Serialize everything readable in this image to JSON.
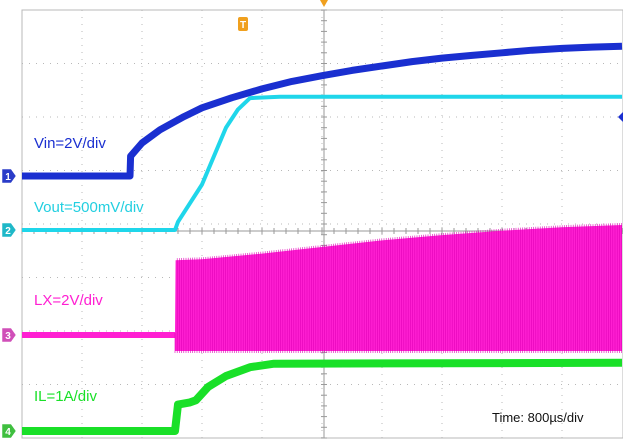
{
  "chart_data": {
    "type": "line",
    "title": "",
    "xlabel": "",
    "ylabel": "",
    "grid": true,
    "time_label": "Time: 800µs/div",
    "trigger_marker": "T",
    "colors": {
      "Vin": "#1a2fd0",
      "Vout": "#1fd6ea",
      "LX": "#ff1fd2",
      "IL": "#19e028",
      "grid": "#b8b8b8",
      "trigger": "#f0a01e"
    },
    "series": [
      {
        "name": "Vin",
        "label": "Vin=2V/div",
        "marker": "1",
        "kind": "line",
        "color": "#1a2fd0",
        "points": [
          [
            0,
            0
          ],
          [
            1.8,
            0
          ],
          [
            1.81,
            0.45
          ],
          [
            2.0,
            0.75
          ],
          [
            2.3,
            1.05
          ],
          [
            2.7,
            1.35
          ],
          [
            3.0,
            1.55
          ],
          [
            3.5,
            1.78
          ],
          [
            4.0,
            1.98
          ],
          [
            4.5,
            2.15
          ],
          [
            5.0,
            2.28
          ],
          [
            5.5,
            2.4
          ],
          [
            6.0,
            2.5
          ],
          [
            6.5,
            2.6
          ],
          [
            7.0,
            2.68
          ],
          [
            7.5,
            2.74
          ],
          [
            8.0,
            2.8
          ],
          [
            8.5,
            2.86
          ],
          [
            9.0,
            2.9
          ],
          [
            9.5,
            2.93
          ],
          [
            10,
            2.95
          ]
        ]
      },
      {
        "name": "Vout",
        "label": "Vout=500mV/div",
        "marker": "2",
        "kind": "line",
        "color": "#1fd6ea",
        "points": [
          [
            0,
            0
          ],
          [
            2.55,
            0
          ],
          [
            2.6,
            0.18
          ],
          [
            3.0,
            1.0
          ],
          [
            3.4,
            2.25
          ],
          [
            3.6,
            2.65
          ],
          [
            3.8,
            2.9
          ],
          [
            4.3,
            2.93
          ],
          [
            10,
            2.93
          ]
        ]
      },
      {
        "name": "LX",
        "label": "LX=2V/div",
        "marker": "3",
        "kind": "switching",
        "color": "#ff1fd2",
        "points": [
          [
            0,
            0
          ],
          [
            2.55,
            0
          ],
          [
            2.56,
            1.7
          ],
          [
            3.0,
            1.72
          ],
          [
            4.0,
            1.85
          ],
          [
            5.0,
            2.0
          ],
          [
            6.0,
            2.15
          ],
          [
            7.0,
            2.27
          ],
          [
            8.0,
            2.37
          ],
          [
            9.0,
            2.45
          ],
          [
            10,
            2.5
          ]
        ]
      },
      {
        "name": "IL",
        "label": "IL=1A/div",
        "marker": "4",
        "kind": "line",
        "color": "#19e028",
        "points": [
          [
            0,
            0
          ],
          [
            2.55,
            0
          ],
          [
            2.6,
            0.6
          ],
          [
            2.8,
            0.65
          ],
          [
            2.9,
            0.7
          ],
          [
            3.1,
            1.0
          ],
          [
            3.4,
            1.25
          ],
          [
            3.8,
            1.45
          ],
          [
            4.2,
            1.53
          ],
          [
            10,
            1.55
          ]
        ]
      }
    ]
  }
}
